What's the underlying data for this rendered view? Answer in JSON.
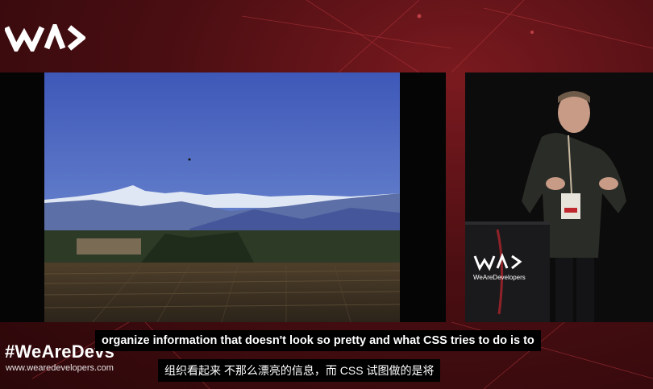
{
  "branding": {
    "logo_icon": "wearedevelopers-logo-icon",
    "podium_logo_text": "WeAreDevelopers",
    "hashtag": "#WeAreDevs",
    "website": "www.wearedevelopers.com"
  },
  "slide": {
    "image": "photo-of-mountain-landscape-over-plowed-field"
  },
  "speaker": {
    "image": "speaker-at-podium"
  },
  "captions": {
    "english": "organize information that doesn't look so pretty and what CSS tries to do is to",
    "chinese": "组织看起来 不那么漂亮的信息，而 CSS 试图做的是将"
  },
  "colors": {
    "background": "#4a0e12",
    "accent": "#c0272d",
    "caption_bg": "#000000"
  }
}
